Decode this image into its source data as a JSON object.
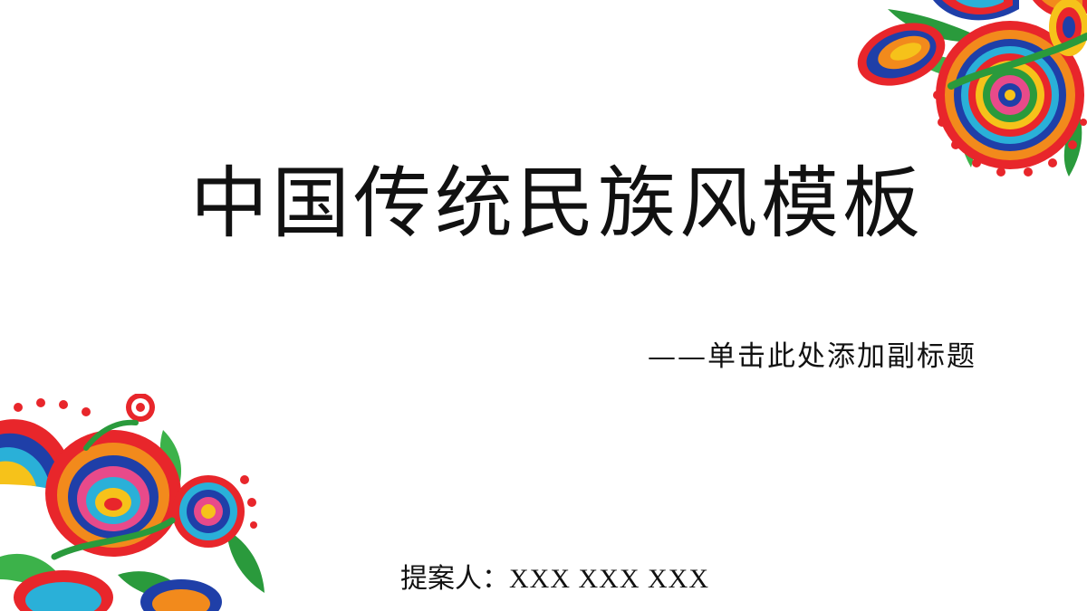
{
  "slide": {
    "title": "中国传统民族风模板",
    "subtitle": "——单击此处添加副标题",
    "proposer_label": "提案人：",
    "proposer_names": "XXX XXX XXX"
  },
  "decorations": {
    "top_right": "folk-floral-ornament",
    "bottom_left": "folk-floral-ornament",
    "palette": [
      "#e8262b",
      "#2a9a3c",
      "#1f3fa8",
      "#2ab0d8",
      "#f28a1c",
      "#f6c21a",
      "#e84a8a"
    ]
  }
}
